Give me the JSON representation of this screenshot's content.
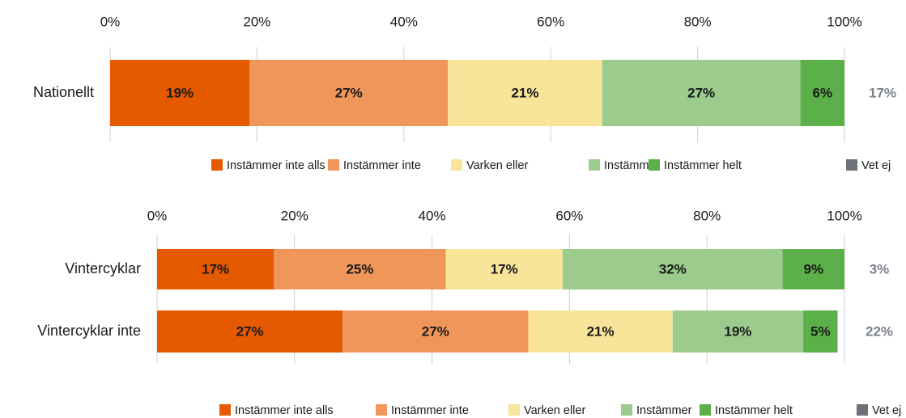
{
  "chart_data": [
    {
      "type": "bar",
      "orientation": "horizontal",
      "stacked": true,
      "categories": [
        "Nationellt"
      ],
      "series": [
        {
          "name": "Instämmer inte alls",
          "color": "#e55a00",
          "values": [
            19
          ],
          "value_labels": [
            "19%"
          ]
        },
        {
          "name": "Instämmer inte",
          "color": "#f0965a",
          "values": [
            27
          ],
          "value_labels": [
            "27%"
          ]
        },
        {
          "name": "Varken eller",
          "color": "#f8e59a",
          "values": [
            21
          ],
          "value_labels": [
            "21%"
          ]
        },
        {
          "name": "Instämmer",
          "color": "#9ccb8e",
          "values": [
            27
          ],
          "value_labels": [
            "27%"
          ]
        },
        {
          "name": "Instämmer helt",
          "color": "#5cb04a",
          "values": [
            6
          ],
          "value_labels": [
            "6%"
          ]
        }
      ],
      "side_series": {
        "name": "Vet ej",
        "color": "#6d7178",
        "values": [
          17
        ],
        "value_labels": [
          "17%"
        ]
      },
      "xlim": [
        0,
        100
      ],
      "xticks": [
        {
          "value": 0,
          "label": "0%"
        },
        {
          "value": 20,
          "label": "20%"
        },
        {
          "value": 40,
          "label": "40%"
        },
        {
          "value": 60,
          "label": "60%"
        },
        {
          "value": 80,
          "label": "80%"
        },
        {
          "value": 100,
          "label": "100%"
        }
      ],
      "grid": true
    },
    {
      "type": "bar",
      "orientation": "horizontal",
      "stacked": true,
      "categories": [
        "Vintercyklar",
        "Vintercyklar inte"
      ],
      "series": [
        {
          "name": "Instämmer inte alls",
          "color": "#e55a00",
          "values": [
            17,
            27
          ],
          "value_labels": [
            "17%",
            "27%"
          ]
        },
        {
          "name": "Instämmer inte",
          "color": "#f0965a",
          "values": [
            25,
            27
          ],
          "value_labels": [
            "25%",
            "27%"
          ]
        },
        {
          "name": "Varken eller",
          "color": "#f8e59a",
          "values": [
            17,
            21
          ],
          "value_labels": [
            "17%",
            "21%"
          ]
        },
        {
          "name": "Instämmer",
          "color": "#9ccb8e",
          "values": [
            32,
            19
          ],
          "value_labels": [
            "32%",
            "19%"
          ]
        },
        {
          "name": "Instämmer helt",
          "color": "#5cb04a",
          "values": [
            9,
            5
          ],
          "value_labels": [
            "9%",
            "5%"
          ]
        }
      ],
      "side_series": {
        "name": "Vet ej",
        "color": "#6d7178",
        "values": [
          3,
          22
        ],
        "value_labels": [
          "3%",
          "22%"
        ]
      },
      "xlim": [
        0,
        100
      ],
      "xticks": [
        {
          "value": 0,
          "label": "0%"
        },
        {
          "value": 20,
          "label": "20%"
        },
        {
          "value": 40,
          "label": "40%"
        },
        {
          "value": 60,
          "label": "60%"
        },
        {
          "value": 80,
          "label": "80%"
        },
        {
          "value": 100,
          "label": "100%"
        }
      ],
      "grid": true
    }
  ]
}
